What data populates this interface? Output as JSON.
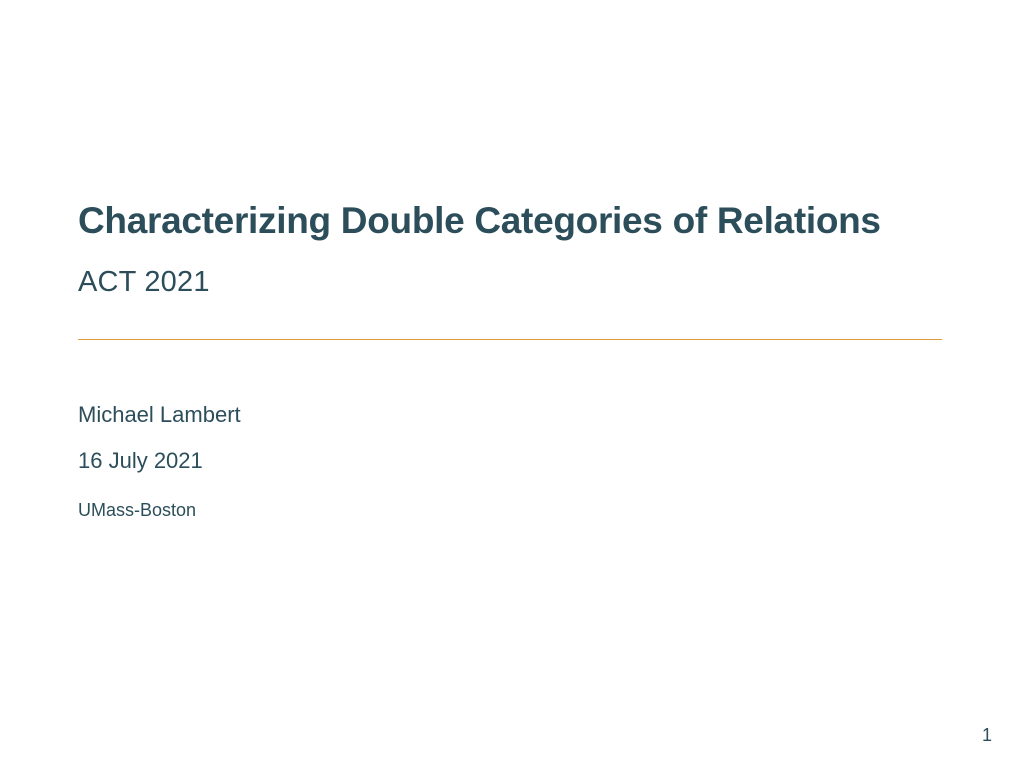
{
  "title": "Characterizing Double Categories of Relations",
  "subtitle": "ACT 2021",
  "author": "Michael Lambert",
  "date": "16 July 2021",
  "affiliation": "UMass-Boston",
  "page_number": "1",
  "colors": {
    "text": "#2c4e5a",
    "rule": "#e49b3d",
    "background": "#ffffff"
  }
}
